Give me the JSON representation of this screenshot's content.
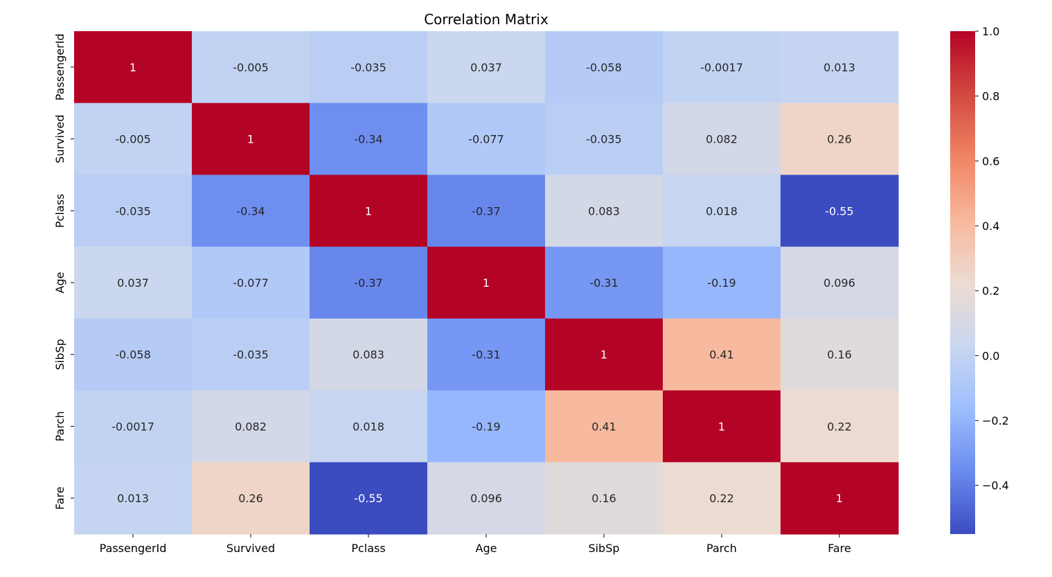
{
  "chart_data": {
    "type": "heatmap",
    "title": "Correlation Matrix",
    "xlabel": "",
    "ylabel": "",
    "x": [
      "PassengerId",
      "Survived",
      "Pclass",
      "Age",
      "SibSp",
      "Parch",
      "Fare"
    ],
    "y": [
      "PassengerId",
      "Survived",
      "Pclass",
      "Age",
      "SibSp",
      "Parch",
      "Fare"
    ],
    "values": [
      [
        1,
        -0.005,
        -0.035,
        0.037,
        -0.058,
        -0.0017,
        0.013
      ],
      [
        -0.005,
        1,
        -0.34,
        -0.077,
        -0.035,
        0.082,
        0.26
      ],
      [
        -0.035,
        -0.34,
        1,
        -0.37,
        0.083,
        0.018,
        -0.55
      ],
      [
        0.037,
        -0.077,
        -0.37,
        1,
        -0.31,
        -0.19,
        0.096
      ],
      [
        -0.058,
        -0.035,
        0.083,
        -0.31,
        1,
        0.41,
        0.16
      ],
      [
        -0.0017,
        0.082,
        0.018,
        -0.19,
        0.41,
        1,
        0.22
      ],
      [
        0.013,
        0.26,
        -0.55,
        0.096,
        0.16,
        0.22,
        1
      ]
    ],
    "annotations": [
      [
        "1",
        "-0.005",
        "-0.035",
        "0.037",
        "-0.058",
        "-0.0017",
        "0.013"
      ],
      [
        "-0.005",
        "1",
        "-0.34",
        "-0.077",
        "-0.035",
        "0.082",
        "0.26"
      ],
      [
        "-0.035",
        "-0.34",
        "1",
        "-0.37",
        "0.083",
        "0.018",
        "-0.55"
      ],
      [
        "0.037",
        "-0.077",
        "-0.37",
        "1",
        "-0.31",
        "-0.19",
        "0.096"
      ],
      [
        "-0.058",
        "-0.035",
        "0.083",
        "-0.31",
        "1",
        "0.41",
        "0.16"
      ],
      [
        "-0.0017",
        "0.082",
        "0.018",
        "-0.19",
        "0.41",
        "1",
        "0.22"
      ],
      [
        "0.013",
        "0.26",
        "-0.55",
        "0.096",
        "0.16",
        "0.22",
        "1"
      ]
    ],
    "colormap": "coolwarm",
    "colormap_stops": [
      "#3b4cc0",
      "#6a8bef",
      "#9ebeff",
      "#c9d7ef",
      "#eddbd1",
      "#f7b89c",
      "#f08464",
      "#d1493f",
      "#b40426"
    ],
    "vmin": -0.55,
    "vmax": 1.0,
    "colorbar_ticks": [
      1.0,
      0.8,
      0.6,
      0.4,
      0.2,
      0.0,
      -0.2,
      -0.4
    ],
    "colorbar_tick_labels": [
      "1.0",
      "0.8",
      "0.6",
      "0.4",
      "0.2",
      "0.0",
      "−0.2",
      "−0.4"
    ],
    "grid": false,
    "legend": "colorbar-right"
  }
}
